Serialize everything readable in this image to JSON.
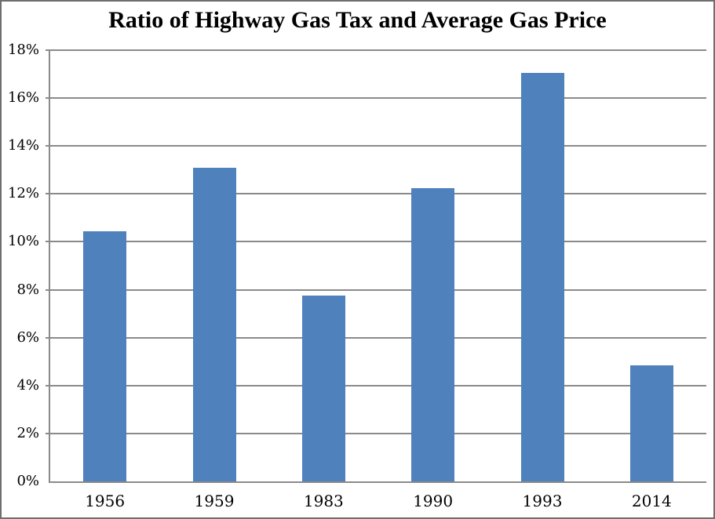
{
  "chart_data": {
    "type": "bar",
    "title": "Ratio of Highway Gas Tax and Average Gas Price",
    "categories": [
      "1956",
      "1959",
      "1983",
      "1990",
      "1993",
      "2014"
    ],
    "values": [
      10.45,
      13.1,
      7.75,
      12.25,
      17.05,
      4.85
    ],
    "xlabel": "",
    "ylabel": "",
    "ylim": [
      0,
      18
    ],
    "ytick_values": [
      0,
      2,
      4,
      6,
      8,
      10,
      12,
      14,
      16,
      18
    ],
    "ytick_labels": [
      "0%",
      "2%",
      "4%",
      "6%",
      "8%",
      "10%",
      "12%",
      "14%",
      "16%",
      "18%"
    ],
    "grid": true,
    "legend": "none",
    "colors": {
      "bar": "#4f81bd",
      "gridline": "#8a8a8a",
      "axis": "#8a8a8a",
      "text": "#000000",
      "background": "#ffffff",
      "frame_border": "#6e6e6e"
    }
  }
}
